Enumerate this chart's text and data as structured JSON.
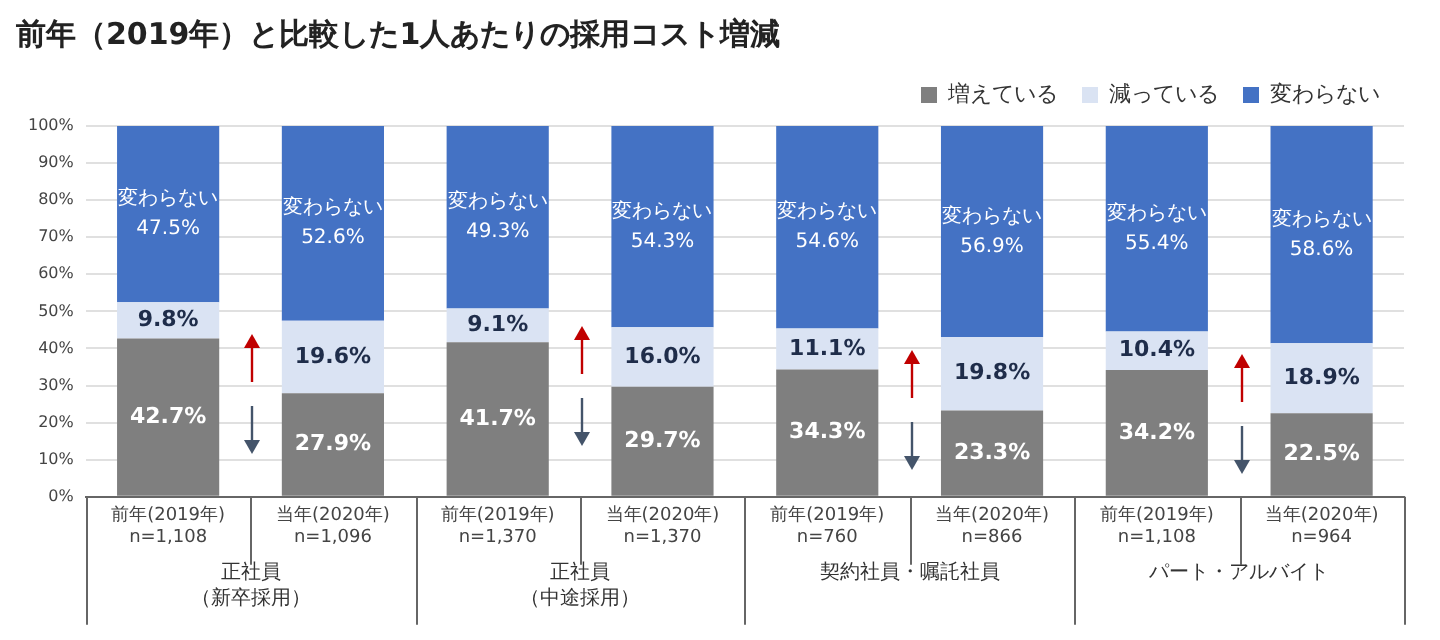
{
  "chart_data": {
    "type": "bar",
    "stacked": true,
    "title": "前年（2019年）と比較した1人あたりの採用コスト増減",
    "categories": [
      "前年(2019年)\nn=1,108",
      "当年(2020年)\nn=1,096",
      "前年(2019年)\nn=1,370",
      "当年(2020年)\nn=1,370",
      "前年(2019年)\nn=760",
      "当年(2020年)\nn=866",
      "前年(2019年)\nn=1,108",
      "当年(2020年)\nn=964"
    ],
    "series": [
      {
        "name": "増えている",
        "color": "#7f7f7f",
        "values": [
          42.7,
          27.9,
          41.7,
          29.7,
          34.3,
          23.3,
          34.2,
          22.5
        ],
        "value_labels": [
          "42.7%",
          "27.9%",
          "41.7%",
          "29.7%",
          "34.3%",
          "23.3%",
          "34.2%",
          "22.5%"
        ]
      },
      {
        "name": "減っている",
        "color": "#dae3f3",
        "values": [
          9.8,
          19.6,
          9.1,
          16.0,
          11.1,
          19.8,
          10.4,
          18.9
        ],
        "value_labels": [
          "9.8%",
          "19.6%",
          "9.1%",
          "16.0%",
          "11.1%",
          "19.8%",
          "10.4%",
          "18.9%"
        ]
      },
      {
        "name": "変わらない",
        "color": "#4472c4",
        "values": [
          47.5,
          52.6,
          49.3,
          54.3,
          54.6,
          56.9,
          55.4,
          58.6
        ],
        "value_labels": [
          "変わらない\n47.5%",
          "変わらない\n52.6%",
          "変わらない\n49.3%",
          "変わらない\n54.3%",
          "変わらない\n54.6%",
          "変わらない\n56.9%",
          "変わらない\n55.4%",
          "変わらない\n58.6%"
        ]
      }
    ],
    "annotations": [
      "正社員（新卒採用）",
      "正社員（中途採用）",
      "契約社員・嘱託社員",
      "パート・アルバイト"
    ],
    "ylim": [
      0,
      100
    ],
    "yticks": [
      {
        "value": 0,
        "label": "0%"
      },
      {
        "value": 10,
        "label": "10%"
      },
      {
        "value": 20,
        "label": "20%"
      },
      {
        "value": 30,
        "label": "30%"
      },
      {
        "value": 40,
        "label": "40%"
      },
      {
        "value": 50,
        "label": "50%"
      },
      {
        "value": 60,
        "label": "60%"
      },
      {
        "value": 70,
        "label": "70%"
      },
      {
        "value": 80,
        "label": "80%"
      },
      {
        "value": 90,
        "label": "90%"
      },
      {
        "value": 100,
        "label": "100%"
      }
    ],
    "grid": "y",
    "legend": "top right"
  }
}
